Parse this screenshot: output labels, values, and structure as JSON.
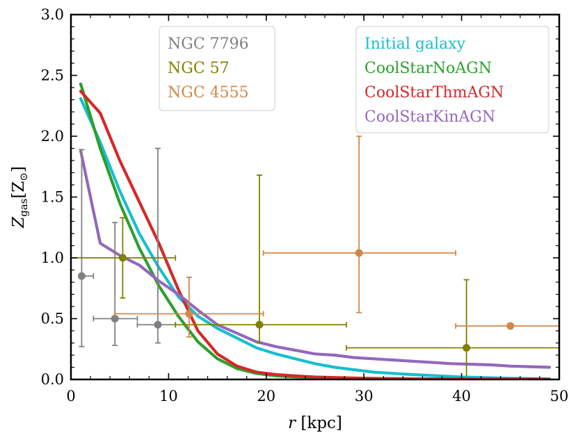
{
  "chart_data": {
    "type": "line",
    "title": "",
    "xlabel_italic": "r",
    "xlabel_unit": "[kpc]",
    "ylabel_main": "Z",
    "ylabel_sub": "gas",
    "ylabel_unit_open": "[Z",
    "ylabel_unit_sun": "⊙",
    "ylabel_unit_close": "]",
    "xlim": [
      0,
      50
    ],
    "ylim": [
      0,
      3.0
    ],
    "xticks": [
      0,
      10,
      20,
      30,
      40,
      50
    ],
    "xtick_labels": [
      "0",
      "10",
      "20",
      "30",
      "40",
      "50"
    ],
    "yticks": [
      0,
      0.5,
      1.0,
      1.5,
      2.0,
      2.5,
      3.0
    ],
    "ytick_labels": [
      "0.0",
      "0.5",
      "1.0",
      "1.5",
      "2.0",
      "2.5",
      "3.0"
    ],
    "grid": false,
    "series": [
      {
        "name": "Initial galaxy",
        "color": "#17becf",
        "x": [
          1,
          3,
          5,
          7,
          9,
          11,
          13,
          15,
          17,
          19,
          21,
          23,
          25,
          27,
          29,
          31,
          33,
          35,
          40,
          45,
          49
        ],
        "y": [
          2.31,
          1.95,
          1.55,
          1.2,
          0.92,
          0.68,
          0.52,
          0.42,
          0.34,
          0.26,
          0.21,
          0.17,
          0.13,
          0.1,
          0.08,
          0.06,
          0.05,
          0.04,
          0.02,
          0.01,
          0.005
        ]
      },
      {
        "name": "CoolStarNoAGN",
        "color": "#2ca02c",
        "x": [
          1,
          3,
          5,
          7,
          9,
          11,
          13,
          15,
          17,
          19,
          21,
          23,
          25,
          30,
          35,
          40,
          45,
          49
        ],
        "y": [
          2.43,
          1.9,
          1.45,
          1.08,
          0.77,
          0.52,
          0.31,
          0.17,
          0.09,
          0.05,
          0.03,
          0.02,
          0.015,
          0.01,
          0.005,
          0.003,
          0.002,
          0.001
        ]
      },
      {
        "name": "CoolStarThmAGN",
        "color": "#d62728",
        "x": [
          1,
          3,
          5,
          7,
          9,
          11,
          13,
          15,
          17,
          19,
          21,
          23,
          25,
          30,
          35,
          40,
          45,
          49
        ],
        "y": [
          2.37,
          2.19,
          1.8,
          1.46,
          1.12,
          0.74,
          0.4,
          0.21,
          0.11,
          0.06,
          0.04,
          0.03,
          0.02,
          0.01,
          0.005,
          0.003,
          0.002,
          0.001
        ]
      },
      {
        "name": "CoolStarKinAGN",
        "color": "#9467bd",
        "x": [
          1,
          3,
          5,
          7,
          9,
          11,
          13,
          15,
          17,
          19,
          21,
          23,
          25,
          27,
          29,
          31,
          33,
          35,
          37,
          39,
          41,
          43,
          45,
          47,
          49
        ],
        "y": [
          1.88,
          1.12,
          1.02,
          0.94,
          0.81,
          0.7,
          0.57,
          0.45,
          0.38,
          0.31,
          0.27,
          0.24,
          0.21,
          0.2,
          0.18,
          0.17,
          0.16,
          0.15,
          0.14,
          0.13,
          0.125,
          0.12,
          0.11,
          0.105,
          0.1
        ]
      }
    ],
    "observations": [
      {
        "name": "NGC 7796",
        "color": "#808080",
        "points": [
          {
            "x": 1.1,
            "y": 0.85,
            "xlo": 1.1,
            "xhi": 2.3,
            "ylo": 0.27,
            "yhi": 1.89
          },
          {
            "x": 4.5,
            "y": 0.5,
            "xlo": 2.3,
            "xhi": 6.8,
            "ylo": 0.28,
            "yhi": 1.29
          },
          {
            "x": 8.9,
            "y": 0.45,
            "xlo": 6.8,
            "xhi": 10.7,
            "ylo": 0.3,
            "yhi": 1.9
          }
        ]
      },
      {
        "name": "NGC 57",
        "color": "#808000",
        "points": [
          {
            "x": 5.3,
            "y": 1.0,
            "xlo": 0.0,
            "xhi": 10.7,
            "ylo": 0.67,
            "yhi": 1.33
          },
          {
            "x": 19.3,
            "y": 0.45,
            "xlo": 10.7,
            "xhi": 28.2,
            "ylo": 0.3,
            "yhi": 1.68
          },
          {
            "x": 40.5,
            "y": 0.26,
            "xlo": 28.2,
            "xhi": 50.0,
            "ylo": 0.0,
            "yhi": 0.82
          }
        ]
      },
      {
        "name": "NGC 4555",
        "color": "#d2874a",
        "points": [
          {
            "x": 12.1,
            "y": 0.54,
            "xlo": 4.5,
            "xhi": 19.7,
            "ylo": 0.35,
            "yhi": 0.84
          },
          {
            "x": 29.5,
            "y": 1.04,
            "xlo": 19.7,
            "xhi": 39.4,
            "ylo": 0.55,
            "yhi": 2.0
          },
          {
            "x": 45.0,
            "y": 0.44,
            "xlo": 39.4,
            "xhi": 50.0,
            "ylo": 0.44,
            "yhi": 0.44
          }
        ]
      }
    ],
    "legend_observations": {
      "placement": "top-center",
      "entries": [
        {
          "label": "NGC 7796",
          "color": "#808080"
        },
        {
          "label": "NGC 57",
          "color": "#808000"
        },
        {
          "label": "NGC 4555",
          "color": "#d2874a"
        }
      ]
    },
    "legend_simulations": {
      "placement": "top-right",
      "entries": [
        {
          "label": "Initial galaxy",
          "color": "#17becf"
        },
        {
          "label": "CoolStarNoAGN",
          "color": "#2ca02c"
        },
        {
          "label": "CoolStarThmAGN",
          "color": "#d62728"
        },
        {
          "label": "CoolStarKinAGN",
          "color": "#9467bd"
        }
      ]
    }
  }
}
